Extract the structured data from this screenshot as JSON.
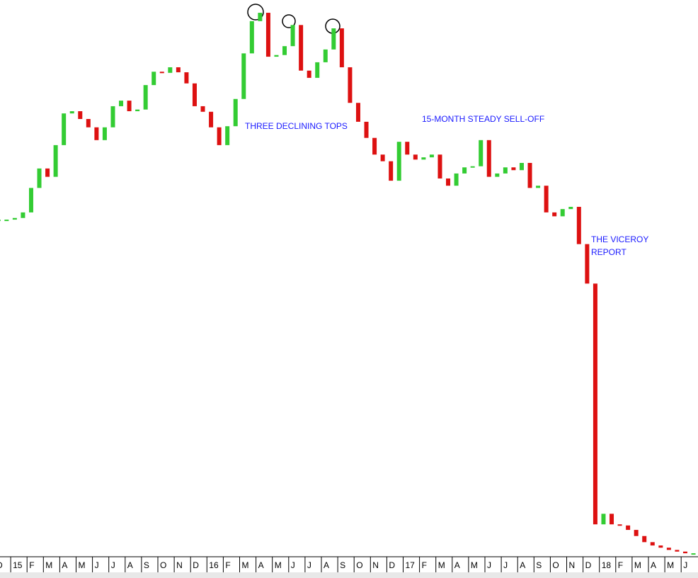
{
  "chart_data": {
    "type": "candlestick",
    "categories": [
      "D",
      null,
      "15",
      null,
      "F",
      null,
      "M",
      null,
      "A",
      null,
      "M",
      null,
      "J",
      null,
      "J",
      null,
      "A",
      null,
      "S",
      null,
      "O",
      null,
      "N",
      null,
      "D",
      null,
      "16",
      null,
      "F",
      null,
      "M",
      null,
      "A",
      null,
      "M",
      null,
      "J",
      null,
      "J",
      null,
      "A",
      null,
      "S",
      null,
      "O",
      null,
      "N",
      null,
      "D",
      null,
      "17",
      null,
      "F",
      null,
      "M",
      null,
      "A",
      null,
      "M",
      null,
      "J",
      null,
      "J",
      null,
      "A",
      null,
      "S",
      null,
      "O",
      null,
      "N",
      null,
      "D",
      null,
      "18",
      null,
      "F",
      null,
      "M",
      null,
      "A",
      null,
      "M",
      null,
      "J",
      null
    ],
    "values": [
      60.5,
      60.5,
      60.8,
      61.8,
      66.2,
      69.7,
      68.2,
      73.9,
      79.6,
      80.0,
      78.6,
      77.1,
      74.8,
      77.1,
      80.9,
      81.9,
      80.0,
      80.3,
      84.7,
      87.1,
      86.9,
      87.9,
      87.0,
      85.0,
      80.9,
      79.9,
      77.1,
      73.9,
      77.3,
      82.2,
      90.4,
      96.2,
      97.7,
      89.8,
      90.1,
      91.7,
      95.5,
      87.3,
      86.0,
      88.8,
      91.1,
      94.9,
      87.9,
      81.5,
      78.1,
      75.2,
      72.2,
      71.0,
      67.5,
      74.5,
      72.2,
      71.3,
      71.7,
      72.2,
      67.9,
      66.6,
      68.8,
      69.9,
      70.1,
      74.8,
      68.2,
      68.8,
      69.9,
      69.4,
      70.7,
      66.2,
      66.6,
      61.8,
      61.1,
      62.4,
      62.8,
      56.1,
      49.0,
      5.7,
      7.6,
      5.7,
      5.5,
      4.7,
      3.6,
      2.5,
      1.9,
      1.5,
      1.1,
      0.8,
      0.5,
      0.5
    ],
    "up_color": "#33cc33",
    "down_color": "#dd1111",
    "ylim": [
      0,
      100
    ],
    "annotations": [
      {
        "lines": [
          "THREE DECLINING TOPS"
        ]
      },
      {
        "lines": [
          "15-MONTH STEADY SELL-OFF"
        ]
      },
      {
        "lines": [
          "THE VICEROY",
          "REPORT"
        ]
      }
    ]
  }
}
